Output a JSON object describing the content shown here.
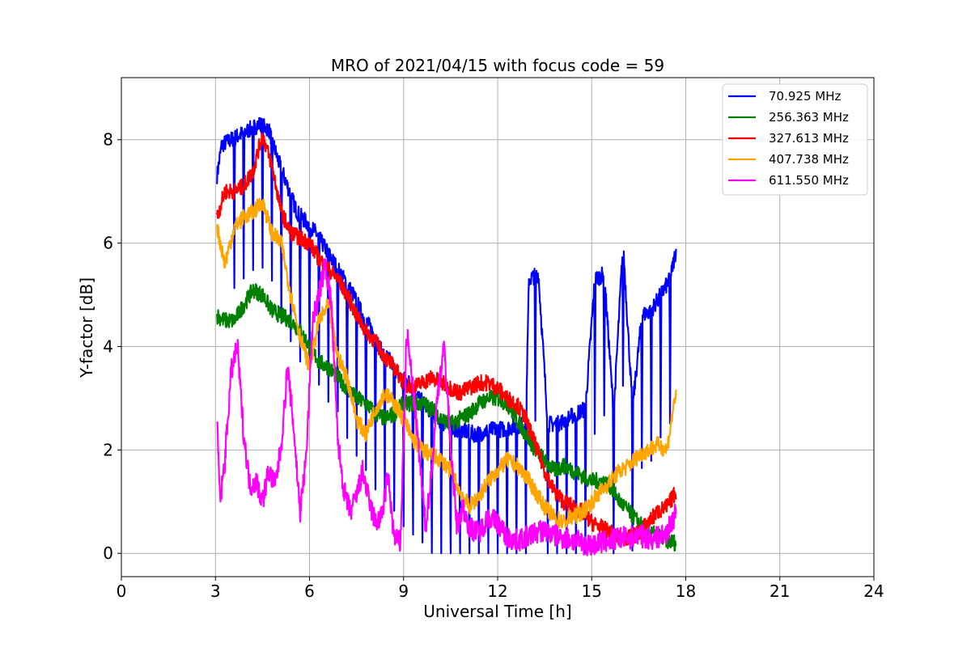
{
  "chart_data": {
    "type": "line",
    "title": "MRO of 2021/04/15 with focus code = 59",
    "xlabel": "Universal Time [h]",
    "ylabel": "Y-factor [dB]",
    "xlim": [
      0,
      24
    ],
    "ylim": [
      -0.45,
      9.2
    ],
    "xticks": [
      0,
      3,
      6,
      9,
      12,
      15,
      18,
      21,
      24
    ],
    "xtick_labels": [
      "0",
      "3",
      "6",
      "9",
      "12",
      "15",
      "18",
      "21",
      "24"
    ],
    "yticks": [
      0,
      2,
      4,
      6,
      8
    ],
    "ytick_labels": [
      "0",
      "2",
      "4",
      "6",
      "8"
    ],
    "grid": true,
    "legend_position": "top-right",
    "series": [
      {
        "name": "70.925 MHz",
        "label": "  70.925 MHz",
        "color": "#0000ff",
        "x": [
          3.05,
          3.2,
          3.5,
          3.8,
          4.1,
          4.4,
          4.7,
          5.0,
          5.3,
          5.6,
          5.9,
          6.2,
          6.5,
          6.8,
          7.1,
          7.4,
          7.7,
          8.0,
          8.3,
          8.6,
          8.9,
          9.2,
          9.5,
          9.8,
          10.1,
          10.4,
          10.7,
          11.0,
          11.3,
          11.6,
          11.9,
          12.2,
          12.5,
          12.9,
          13.0,
          13.3,
          13.6,
          13.9,
          14.2,
          14.5,
          14.8,
          15.1,
          15.4,
          15.7,
          16.0,
          16.3,
          16.6,
          16.9,
          17.2,
          17.5,
          17.7
        ],
        "y": [
          7.3,
          7.9,
          8.0,
          8.1,
          8.2,
          8.3,
          8.2,
          7.6,
          7.1,
          6.6,
          6.4,
          6.2,
          5.9,
          5.6,
          5.3,
          5.0,
          4.6,
          4.3,
          3.9,
          3.7,
          3.4,
          3.3,
          3.0,
          2.8,
          2.6,
          2.45,
          2.4,
          2.35,
          2.3,
          2.35,
          2.4,
          2.4,
          2.45,
          2.5,
          5.3,
          5.4,
          2.5,
          2.5,
          2.6,
          2.7,
          2.8,
          5.3,
          5.4,
          2.7,
          6.0,
          2.8,
          4.6,
          4.7,
          5.0,
          5.3,
          5.9
        ],
        "dips": [
          3.6,
          3.9,
          4.2,
          4.5,
          4.8,
          5.1,
          5.4,
          5.7,
          6.0,
          6.3,
          6.6,
          6.9,
          7.2,
          7.5,
          7.8,
          8.1,
          8.4,
          8.7,
          9.0,
          9.3,
          9.6,
          9.9,
          10.2,
          10.5,
          10.8,
          11.1,
          11.4,
          11.7,
          12.0,
          12.3,
          12.6,
          12.9,
          13.2,
          13.6,
          13.9,
          14.2,
          14.5,
          14.8,
          15.1,
          15.4,
          15.7,
          16.0,
          16.3,
          16.6,
          16.9,
          17.2,
          17.5
        ],
        "dip_depth": 3.2
      },
      {
        "name": "256.363 MHz",
        "label": "256.363 MHz",
        "color": "#008000",
        "x": [
          3.05,
          3.3,
          3.6,
          3.9,
          4.2,
          4.5,
          4.8,
          5.1,
          5.4,
          5.7,
          6.0,
          6.3,
          6.6,
          6.9,
          7.2,
          7.5,
          7.8,
          8.1,
          8.4,
          8.7,
          9.0,
          9.3,
          9.6,
          9.9,
          10.2,
          10.5,
          10.8,
          11.1,
          11.4,
          11.7,
          12.0,
          12.3,
          12.6,
          12.9,
          13.2,
          13.5,
          13.8,
          14.1,
          14.4,
          14.7,
          15.0,
          15.3,
          15.6,
          15.9,
          16.2,
          16.5,
          16.8,
          17.1,
          17.4,
          17.7
        ],
        "y": [
          4.6,
          4.5,
          4.5,
          4.8,
          5.1,
          5.0,
          4.7,
          4.6,
          4.5,
          4.3,
          4.0,
          3.7,
          3.6,
          3.4,
          3.2,
          3.0,
          2.9,
          2.7,
          2.6,
          2.7,
          2.9,
          2.9,
          2.9,
          2.8,
          2.6,
          2.5,
          2.6,
          2.7,
          2.9,
          3.0,
          3.0,
          2.9,
          2.6,
          2.3,
          2.0,
          1.8,
          1.6,
          1.7,
          1.6,
          1.5,
          1.4,
          1.4,
          1.3,
          1.0,
          0.8,
          0.6,
          0.4,
          0.35,
          0.25,
          0.2
        ]
      },
      {
        "name": "327.613 MHz",
        "label": "327.613 MHz",
        "color": "#ff0000",
        "x": [
          3.05,
          3.3,
          3.6,
          3.9,
          4.2,
          4.5,
          4.8,
          5.1,
          5.4,
          5.7,
          6.0,
          6.3,
          6.6,
          6.9,
          7.2,
          7.5,
          7.8,
          8.1,
          8.4,
          8.7,
          9.0,
          9.3,
          9.6,
          9.9,
          10.2,
          10.5,
          10.8,
          11.1,
          11.4,
          11.7,
          12.0,
          12.3,
          12.6,
          12.9,
          13.2,
          13.5,
          13.8,
          14.1,
          14.4,
          14.7,
          15.0,
          15.3,
          15.6,
          15.9,
          16.2,
          16.5,
          16.8,
          17.1,
          17.4,
          17.7
        ],
        "y": [
          6.5,
          7.0,
          7.0,
          7.1,
          7.4,
          8.1,
          7.5,
          6.6,
          6.2,
          6.1,
          6.0,
          5.7,
          5.5,
          5.3,
          5.0,
          4.6,
          4.3,
          4.1,
          3.8,
          3.6,
          3.3,
          3.2,
          3.3,
          3.4,
          3.3,
          3.2,
          3.1,
          3.2,
          3.3,
          3.3,
          3.2,
          3.0,
          2.9,
          2.6,
          2.1,
          1.6,
          1.2,
          1.0,
          0.9,
          0.8,
          0.6,
          0.5,
          0.4,
          0.3,
          0.3,
          0.4,
          0.6,
          0.8,
          0.9,
          1.2
        ]
      },
      {
        "name": "407.738 MHz",
        "label": "407.738 MHz",
        "color": "#ffa500",
        "x": [
          3.05,
          3.3,
          3.6,
          3.9,
          4.2,
          4.5,
          4.8,
          5.1,
          5.4,
          5.7,
          6.0,
          6.3,
          6.6,
          6.9,
          7.2,
          7.5,
          7.8,
          8.1,
          8.4,
          8.7,
          9.0,
          9.3,
          9.6,
          9.9,
          10.2,
          10.5,
          10.8,
          11.1,
          11.4,
          11.7,
          12.0,
          12.3,
          12.6,
          12.9,
          13.2,
          13.5,
          13.8,
          14.1,
          14.4,
          14.7,
          15.0,
          15.3,
          15.6,
          15.9,
          16.2,
          16.5,
          16.8,
          17.1,
          17.4,
          17.7
        ],
        "y": [
          6.3,
          5.6,
          6.3,
          6.5,
          6.6,
          6.8,
          6.2,
          6.0,
          5.0,
          4.2,
          3.6,
          4.5,
          4.8,
          3.8,
          3.4,
          2.6,
          2.3,
          2.8,
          3.1,
          2.9,
          2.6,
          2.2,
          2.0,
          1.9,
          1.8,
          1.6,
          1.2,
          0.9,
          1.1,
          1.4,
          1.6,
          1.8,
          1.7,
          1.5,
          1.2,
          0.9,
          0.7,
          0.6,
          0.7,
          0.8,
          1.0,
          1.2,
          1.4,
          1.6,
          1.7,
          1.9,
          2.0,
          2.1,
          2.0,
          3.2
        ]
      },
      {
        "name": "611.550 MHz",
        "label": "611.550 MHz",
        "color": "#ff00ff",
        "x": [
          3.05,
          3.15,
          3.3,
          3.5,
          3.7,
          3.9,
          4.1,
          4.3,
          4.5,
          4.7,
          4.9,
          5.1,
          5.3,
          5.5,
          5.7,
          5.9,
          6.1,
          6.3,
          6.5,
          6.7,
          6.9,
          7.1,
          7.3,
          7.5,
          7.7,
          7.9,
          8.1,
          8.3,
          8.5,
          8.7,
          8.9,
          9.1,
          9.3,
          9.5,
          9.7,
          9.9,
          10.1,
          10.3,
          10.5,
          10.7,
          10.9,
          11.1,
          11.4,
          11.7,
          12.0,
          12.3,
          12.6,
          12.9,
          13.2,
          13.5,
          13.8,
          14.1,
          14.4,
          14.7,
          15.0,
          15.3,
          15.6,
          15.9,
          16.2,
          16.5,
          16.8,
          17.1,
          17.4,
          17.7
        ],
        "y": [
          2.5,
          1.0,
          1.8,
          3.5,
          4.0,
          2.3,
          1.3,
          1.4,
          1.0,
          1.6,
          1.3,
          2.1,
          3.6,
          2.4,
          0.8,
          1.9,
          4.5,
          5.0,
          5.6,
          4.8,
          2.2,
          1.2,
          0.8,
          1.1,
          1.6,
          1.0,
          0.6,
          0.7,
          1.5,
          0.3,
          0.2,
          4.3,
          3.2,
          1.9,
          0.5,
          1.6,
          3.2,
          4.0,
          2.1,
          0.5,
          0.9,
          0.5,
          0.4,
          0.7,
          0.6,
          0.3,
          0.25,
          0.3,
          0.4,
          0.45,
          0.35,
          0.3,
          0.25,
          0.2,
          0.15,
          0.2,
          0.25,
          0.3,
          0.3,
          0.35,
          0.3,
          0.3,
          0.4,
          0.8
        ]
      }
    ]
  }
}
